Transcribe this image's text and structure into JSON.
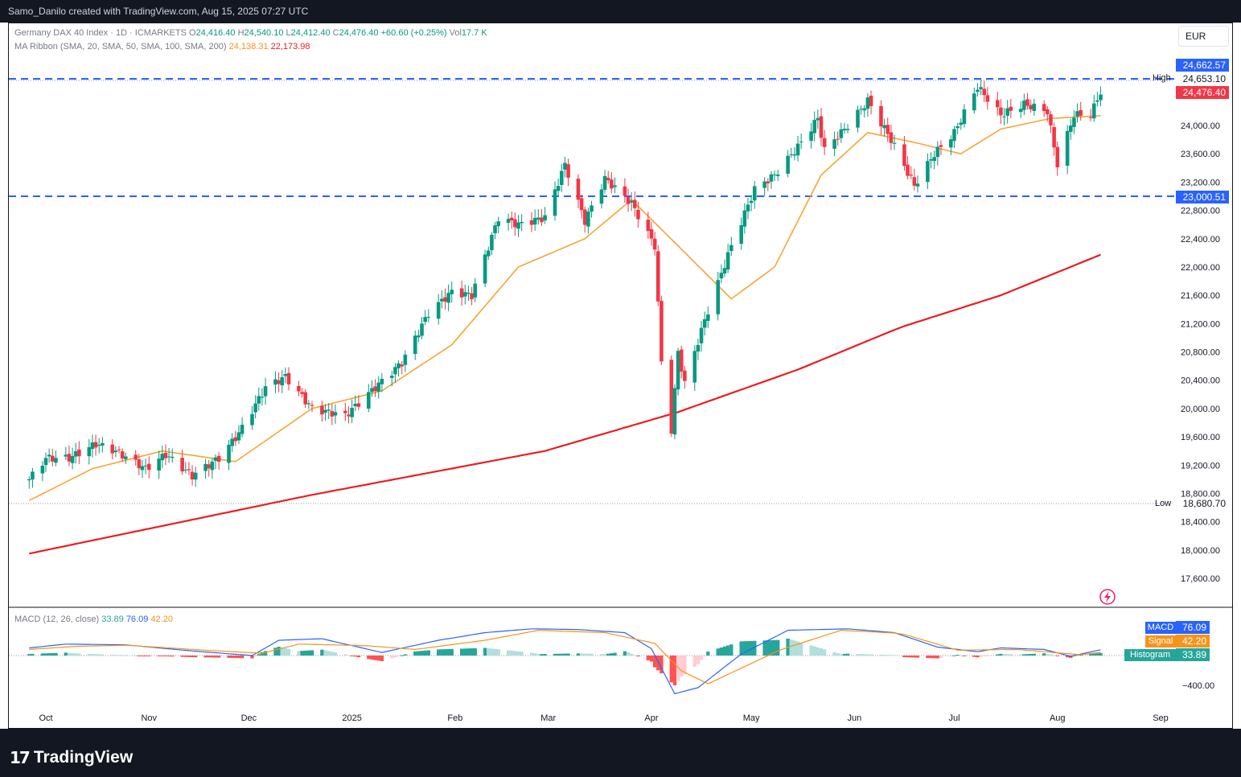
{
  "header": {
    "attribution": "Samo_Danilo created with TradingView.com, Aug 15, 2025 07:27 UTC"
  },
  "legend": {
    "symbol": "Germany DAX 40 Index · 1D · ICMARKETS",
    "o_label": "O",
    "o_value": "24,416.40",
    "h_label": "H",
    "h_value": "24,540.10",
    "l_label": "L",
    "l_value": "24,412.40",
    "c_label": "C",
    "c_value": "24,476.40",
    "change": "+60.60 (+0.25%)",
    "vol_label": "Vol",
    "vol_value": "17.7 K",
    "ma_label": "MA Ribbon (SMA, 20, SMA, 50, SMA, 100, SMA, 200)",
    "ma_value_1": "24,138.31",
    "ma_value_2": "22,173.98",
    "macd_label": "MACD (12, 26, close)",
    "macd_hist": "33.89",
    "macd_macd": "76.09",
    "macd_signal": "42.20"
  },
  "currency": "EUR",
  "price_badges": {
    "resistance": "24,662.57",
    "high_tag": "High",
    "high_value": "24,653.10",
    "last": "24,476.40",
    "support": "23,000.51",
    "low_tag": "Low",
    "low_value": "18,680.70"
  },
  "indicator_badges": {
    "macd_name": "MACD",
    "macd_value": "76.09",
    "signal_name": "Signal",
    "signal_value": "42.20",
    "hist_name": "Histogram",
    "hist_value": "33.89",
    "macd_axis_tick": "−400.00"
  },
  "footer": {
    "brand_mark": "17",
    "brand": "TradingView"
  },
  "colors": {
    "up": "#089981",
    "down": "#f23645",
    "sma20": "#f7a533",
    "sma200": "#e91e23",
    "hline": "#2962ff",
    "macd_line": "#2962ff",
    "signal_line": "#f7931a",
    "hist_up_strong": "#26a69a",
    "hist_up_weak": "#b2dfdb",
    "hist_down_strong": "#ff5252",
    "hist_down_weak": "#ffcdd2"
  },
  "chart_data": {
    "type": "candlestick",
    "title": "Germany DAX 40 Index · 1D · ICMARKETS",
    "x_ticks": [
      "Oct",
      "Nov",
      "Dec",
      "2025",
      "Feb",
      "Mar",
      "Apr",
      "May",
      "Jun",
      "Jul",
      "Aug",
      "Sep"
    ],
    "y_ticks": [
      "17,600.00",
      "18,000.00",
      "18,400.00",
      "18,800.00",
      "19,200.00",
      "19,600.00",
      "20,000.00",
      "20,400.00",
      "20,800.00",
      "21,200.00",
      "21,600.00",
      "22,000.00",
      "22,400.00",
      "22,800.00",
      "23,200.00",
      "23,600.00",
      "24,000.00"
    ],
    "ylim": [
      17400,
      25300
    ],
    "horizontal_lines": [
      24662.57,
      23000.51
    ],
    "high": 24653.1,
    "low": 18680.7,
    "last_close": 24476.4,
    "close_anchors": [
      [
        "2024-09-26",
        19000
      ],
      [
        "2024-10-01",
        19300
      ],
      [
        "2024-10-08",
        19300
      ],
      [
        "2024-10-16",
        19500
      ],
      [
        "2024-10-22",
        19400
      ],
      [
        "2024-10-31",
        19150
      ],
      [
        "2024-11-06",
        19350
      ],
      [
        "2024-11-14",
        19050
      ],
      [
        "2024-11-22",
        19300
      ],
      [
        "2024-11-28",
        19650
      ],
      [
        "2024-12-06",
        20300
      ],
      [
        "2024-12-12",
        20450
      ],
      [
        "2024-12-20",
        20000
      ],
      [
        "2024-12-30",
        19900
      ],
      [
        "2025-01-08",
        20300
      ],
      [
        "2025-01-16",
        20650
      ],
      [
        "2025-01-24",
        21350
      ],
      [
        "2025-01-31",
        21650
      ],
      [
        "2025-02-06",
        21600
      ],
      [
        "2025-02-14",
        22700
      ],
      [
        "2025-02-20",
        22600
      ],
      [
        "2025-02-28",
        22700
      ],
      [
        "2025-03-06",
        23450
      ],
      [
        "2025-03-12",
        22650
      ],
      [
        "2025-03-18",
        23250
      ],
      [
        "2025-03-26",
        22900
      ],
      [
        "2025-04-02",
        22300
      ],
      [
        "2025-04-04",
        20650
      ],
      [
        "2025-04-07",
        19700
      ],
      [
        "2025-04-09",
        20800
      ],
      [
        "2025-04-11",
        20350
      ],
      [
        "2025-04-17",
        21250
      ],
      [
        "2025-04-25",
        22300
      ],
      [
        "2025-05-02",
        23100
      ],
      [
        "2025-05-08",
        23300
      ],
      [
        "2025-05-15",
        23700
      ],
      [
        "2025-05-21",
        24100
      ],
      [
        "2025-05-23",
        23650
      ],
      [
        "2025-05-30",
        24000
      ],
      [
        "2025-06-05",
        24350
      ],
      [
        "2025-06-12",
        23800
      ],
      [
        "2025-06-19",
        23150
      ],
      [
        "2025-06-25",
        23600
      ],
      [
        "2025-07-01",
        23900
      ],
      [
        "2025-07-08",
        24550
      ],
      [
        "2025-07-15",
        24150
      ],
      [
        "2025-07-22",
        24300
      ],
      [
        "2025-07-29",
        24200
      ],
      [
        "2025-08-01",
        23450
      ],
      [
        "2025-08-06",
        24150
      ],
      [
        "2025-08-11",
        24150
      ],
      [
        "2025-08-14",
        24476.4
      ]
    ],
    "sma20_anchors": [
      [
        "2024-09-26",
        18700
      ],
      [
        "2024-10-15",
        19150
      ],
      [
        "2024-11-05",
        19400
      ],
      [
        "2024-11-27",
        19250
      ],
      [
        "2024-12-20",
        20000
      ],
      [
        "2025-01-10",
        20250
      ],
      [
        "2025-01-31",
        20900
      ],
      [
        "2025-02-20",
        22000
      ],
      [
        "2025-03-12",
        22400
      ],
      [
        "2025-03-26",
        22950
      ],
      [
        "2025-04-09",
        22300
      ],
      [
        "2025-04-25",
        21550
      ],
      [
        "2025-05-08",
        22000
      ],
      [
        "2025-05-22",
        23300
      ],
      [
        "2025-06-05",
        23900
      ],
      [
        "2025-06-20",
        23750
      ],
      [
        "2025-07-03",
        23600
      ],
      [
        "2025-07-15",
        23950
      ],
      [
        "2025-07-30",
        24100
      ],
      [
        "2025-08-14",
        24138.31
      ]
    ],
    "sma200_anchors": [
      [
        "2024-09-26",
        17950
      ],
      [
        "2024-12-20",
        18780
      ],
      [
        "2025-02-28",
        19400
      ],
      [
        "2025-04-09",
        19950
      ],
      [
        "2025-05-15",
        20550
      ],
      [
        "2025-06-15",
        21150
      ],
      [
        "2025-07-15",
        21600
      ],
      [
        "2025-08-14",
        22173.98
      ]
    ],
    "macd_anchors": [
      [
        "2024-09-26",
        100
      ],
      [
        "2024-10-07",
        150
      ],
      [
        "2024-10-25",
        140
      ],
      [
        "2024-11-14",
        60
      ],
      [
        "2024-12-02",
        0
      ],
      [
        "2024-12-10",
        200
      ],
      [
        "2024-12-23",
        220
      ],
      [
        "2025-01-10",
        40
      ],
      [
        "2025-01-27",
        200
      ],
      [
        "2025-02-10",
        300
      ],
      [
        "2025-02-24",
        350
      ],
      [
        "2025-03-10",
        340
      ],
      [
        "2025-03-24",
        300
      ],
      [
        "2025-04-01",
        90
      ],
      [
        "2025-04-08",
        -500
      ],
      [
        "2025-04-15",
        -420
      ],
      [
        "2025-04-28",
        20
      ],
      [
        "2025-05-12",
        330
      ],
      [
        "2025-05-30",
        350
      ],
      [
        "2025-06-13",
        300
      ],
      [
        "2025-06-26",
        110
      ],
      [
        "2025-07-08",
        50
      ],
      [
        "2025-07-15",
        100
      ],
      [
        "2025-07-28",
        80
      ],
      [
        "2025-08-05",
        -10
      ],
      [
        "2025-08-14",
        76.09
      ]
    ],
    "signal_anchors": [
      [
        "2024-09-26",
        80
      ],
      [
        "2024-10-10",
        120
      ],
      [
        "2024-10-25",
        135
      ],
      [
        "2024-11-18",
        70
      ],
      [
        "2024-12-05",
        30
      ],
      [
        "2024-12-16",
        150
      ],
      [
        "2025-01-05",
        130
      ],
      [
        "2025-01-20",
        80
      ],
      [
        "2025-02-10",
        200
      ],
      [
        "2025-02-26",
        330
      ],
      [
        "2025-03-18",
        300
      ],
      [
        "2025-04-02",
        160
      ],
      [
        "2025-04-10",
        -200
      ],
      [
        "2025-04-18",
        -370
      ],
      [
        "2025-05-10",
        80
      ],
      [
        "2025-05-28",
        330
      ],
      [
        "2025-06-15",
        290
      ],
      [
        "2025-07-02",
        70
      ],
      [
        "2025-07-20",
        80
      ],
      [
        "2025-08-08",
        10
      ],
      [
        "2025-08-14",
        42.2
      ]
    ]
  }
}
